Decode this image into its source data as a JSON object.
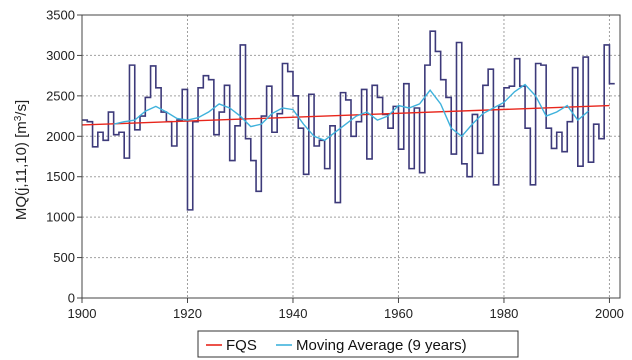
{
  "chart_data": {
    "type": "line",
    "ylabel_main": "MQ(j,11,10) [m",
    "ylabel_sup": "3",
    "ylabel_end": "/s]",
    "xlim": [
      1900,
      2002
    ],
    "ylim": [
      0,
      3500
    ],
    "x_ticks": [
      1900,
      1920,
      1940,
      1960,
      1980,
      2000
    ],
    "y_ticks": [
      0,
      500,
      1000,
      1500,
      2000,
      2500,
      3000,
      3500
    ],
    "grid": true,
    "legend_position": "bottom-center",
    "series": [
      {
        "name": "",
        "style": "step",
        "color": "#3d3a7a",
        "x": [
          1900,
          1901,
          1902,
          1903,
          1904,
          1905,
          1906,
          1907,
          1908,
          1909,
          1910,
          1911,
          1912,
          1913,
          1914,
          1915,
          1916,
          1917,
          1918,
          1919,
          1920,
          1921,
          1922,
          1923,
          1924,
          1925,
          1926,
          1927,
          1928,
          1929,
          1930,
          1931,
          1932,
          1933,
          1934,
          1935,
          1936,
          1937,
          1938,
          1939,
          1940,
          1941,
          1942,
          1943,
          1944,
          1945,
          1946,
          1947,
          1948,
          1949,
          1950,
          1951,
          1952,
          1953,
          1954,
          1955,
          1956,
          1957,
          1958,
          1959,
          1960,
          1961,
          1962,
          1963,
          1964,
          1965,
          1966,
          1967,
          1968,
          1969,
          1970,
          1971,
          1972,
          1973,
          1974,
          1975,
          1976,
          1977,
          1978,
          1979,
          1980,
          1981,
          1982,
          1983,
          1984,
          1985,
          1986,
          1987,
          1988,
          1989,
          1990,
          1991,
          1992,
          1993,
          1994,
          1995,
          1996,
          1997,
          1998,
          1999,
          2000
        ],
        "values": [
          2200,
          2180,
          1870,
          2050,
          1950,
          2300,
          2020,
          2050,
          1730,
          2880,
          2080,
          2250,
          2480,
          2870,
          2600,
          2300,
          2180,
          1880,
          2200,
          2580,
          1090,
          2180,
          2600,
          2750,
          2700,
          2020,
          2300,
          2630,
          1700,
          2130,
          3130,
          1970,
          1700,
          1320,
          2250,
          2620,
          2050,
          2280,
          2900,
          2800,
          2500,
          2100,
          1530,
          2520,
          1880,
          1950,
          1600,
          2130,
          1180,
          2540,
          2450,
          2000,
          2180,
          2580,
          1720,
          2630,
          2480,
          2270,
          2100,
          2370,
          1840,
          2650,
          1600,
          2350,
          1550,
          2880,
          3300,
          3050,
          2700,
          2480,
          1780,
          3160,
          1660,
          1500,
          2270,
          1790,
          2630,
          2830,
          1400,
          2370,
          2600,
          2620,
          2960,
          2620,
          2100,
          1400,
          2900,
          2880,
          2100,
          1850,
          2050,
          1810,
          2180,
          2850,
          1630,
          2980,
          1680,
          2150,
          1970,
          3130,
          2650
        ]
      },
      {
        "name": "FQS",
        "style": "line",
        "color": "#e8261c",
        "x": [
          1900,
          2000
        ],
        "values": [
          2140,
          2380
        ]
      },
      {
        "name": "Moving Average (9 years)",
        "style": "line",
        "color": "#3fb2dc",
        "x": [
          1906,
          1908,
          1910,
          1912,
          1914,
          1916,
          1918,
          1920,
          1922,
          1924,
          1926,
          1928,
          1930,
          1932,
          1934,
          1936,
          1938,
          1940,
          1942,
          1944,
          1946,
          1948,
          1950,
          1952,
          1954,
          1956,
          1958,
          1960,
          1962,
          1964,
          1966,
          1968,
          1970,
          1972,
          1974,
          1976,
          1978,
          1980,
          1982,
          1984,
          1986,
          1988,
          1990,
          1992,
          1994,
          1996
        ],
        "values": [
          2150,
          2180,
          2200,
          2310,
          2370,
          2300,
          2220,
          2200,
          2230,
          2300,
          2400,
          2350,
          2250,
          2120,
          2150,
          2280,
          2350,
          2330,
          2150,
          2000,
          1950,
          2050,
          2150,
          2250,
          2300,
          2200,
          2250,
          2380,
          2350,
          2400,
          2570,
          2400,
          2100,
          2000,
          2150,
          2280,
          2350,
          2420,
          2550,
          2640,
          2500,
          2250,
          2300,
          2380,
          2200,
          2310
        ]
      }
    ],
    "legend": [
      {
        "label": "FQS",
        "color": "#e8261c"
      },
      {
        "label": "Moving Average (9 years)",
        "color": "#3fb2dc"
      }
    ]
  }
}
